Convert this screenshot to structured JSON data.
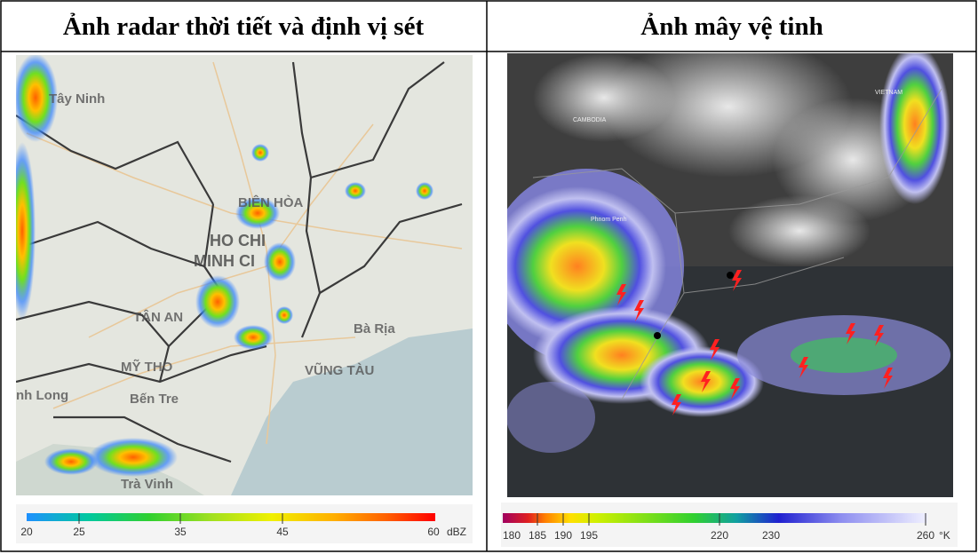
{
  "header": {
    "left": "Ảnh radar thời tiết và định vị sét",
    "right": "Ảnh mây vệ tinh"
  },
  "radar": {
    "labels": [
      "Tây Ninh",
      "BIÊN HÒA",
      "HO CHI",
      "MINH CI",
      "TÂN AN",
      "Bà Rịa",
      "MỸ THO",
      "VŨNG TÀU",
      "Bến Tre",
      "nh Long",
      "Trà Vinh"
    ],
    "scale": {
      "ticks": [
        20,
        25,
        35,
        45,
        60
      ],
      "unit": "dBZ"
    }
  },
  "satellite": {
    "labels": [
      "CAMBODIA",
      "VIETNAM",
      "Phnom Penh"
    ],
    "scale": {
      "ticks": [
        180,
        185,
        190,
        195,
        220,
        230,
        260
      ],
      "unit": "°K"
    }
  }
}
